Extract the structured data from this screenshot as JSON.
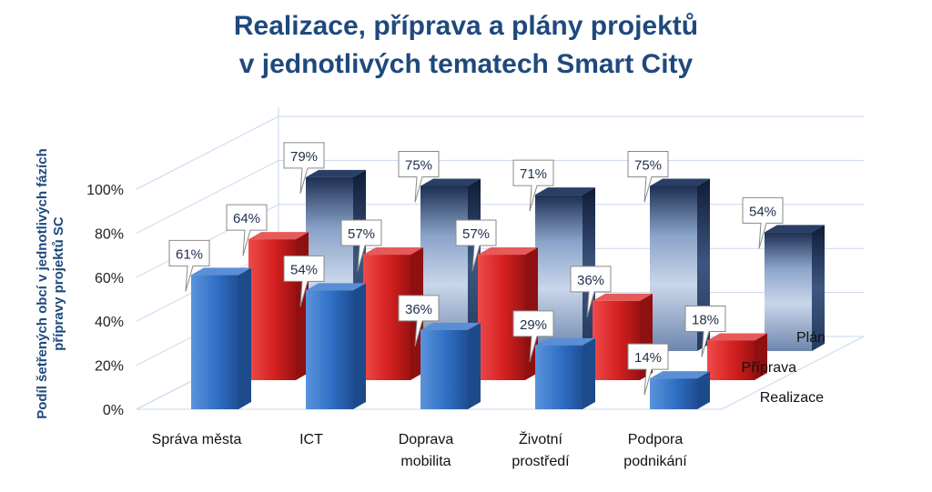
{
  "chart_data": {
    "type": "bar",
    "title_lines": [
      "Realizace, příprava a plány projektů",
      "v jednotlivých tematech Smart City"
    ],
    "ylabel_lines": [
      "Podíl šetřených obcí v jednotlivých fázích",
      "přípravy projektů SC"
    ],
    "yticks": [
      "0%",
      "20%",
      "40%",
      "60%",
      "80%",
      "100%"
    ],
    "ylim": [
      0,
      100
    ],
    "categories": [
      {
        "lines": [
          "Správa města"
        ]
      },
      {
        "lines": [
          "ICT"
        ]
      },
      {
        "lines": [
          "Doprava",
          "mobilita"
        ]
      },
      {
        "lines": [
          "Životní",
          "prostředí"
        ]
      },
      {
        "lines": [
          "Podpora",
          "podnikání"
        ]
      }
    ],
    "series": [
      {
        "name": "Realizace",
        "values": [
          61,
          54,
          36,
          29,
          14
        ],
        "labels": [
          "61%",
          "54%",
          "36%",
          "29%",
          "14%"
        ],
        "color": "#2f6fc4"
      },
      {
        "name": "Příprava",
        "values": [
          64,
          57,
          57,
          36,
          18
        ],
        "labels": [
          "64%",
          "57%",
          "57%",
          "36%",
          "18%"
        ],
        "color": "#d42020"
      },
      {
        "name": "Plán",
        "values": [
          79,
          75,
          71,
          75,
          54
        ],
        "labels": [
          "79%",
          "75%",
          "71%",
          "75%",
          "54%"
        ],
        "color": "#9fb5d6"
      }
    ],
    "grid": true
  }
}
